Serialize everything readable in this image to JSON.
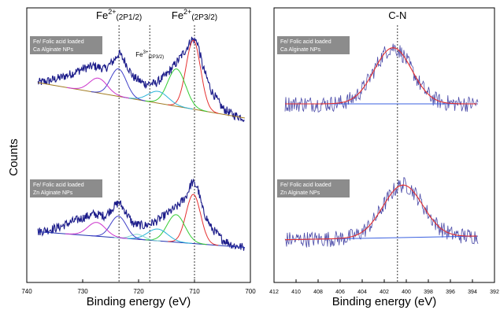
{
  "figure": {
    "y_axis_label": "Counts"
  },
  "chart_data": [
    {
      "type": "line",
      "panel": "left",
      "xlabel": "Binding energy (eV)",
      "ylabel": "Counts",
      "xlim": [
        740,
        700
      ],
      "x_reversed": true,
      "x_ticks": [
        740,
        730,
        720,
        710,
        700
      ],
      "peak_markers": [
        {
          "label_main": "Fe",
          "label_sup": "2+",
          "label_sub": "(2P1/2)",
          "x": 723.5
        },
        {
          "label_main": "Fe",
          "label_sup": "3+",
          "label_sub": "(2P3/2)",
          "x": 718
        },
        {
          "label_main": "Fe",
          "label_sup": "2+",
          "label_sub": "(2P3/2)",
          "x": 710
        }
      ],
      "spectra": [
        {
          "sample_label": [
            "Fe/ Folic acid loaded",
            "Ca Alginate NPs"
          ],
          "raw_color": "#1c1c8a",
          "profile": [
            [
              738,
              0.56
            ],
            [
              736,
              0.58
            ],
            [
              734,
              0.61
            ],
            [
              732,
              0.65
            ],
            [
              730,
              0.7
            ],
            [
              728,
              0.73
            ],
            [
              726,
              0.7
            ],
            [
              724.5,
              0.78
            ],
            [
              723.5,
              0.86
            ],
            [
              722.5,
              0.78
            ],
            [
              721,
              0.62
            ],
            [
              719,
              0.55
            ],
            [
              717,
              0.55
            ],
            [
              715,
              0.64
            ],
            [
              713,
              0.78
            ],
            [
              711.5,
              0.9
            ],
            [
              710.5,
              1.0
            ],
            [
              709.5,
              0.98
            ],
            [
              708.5,
              0.72
            ],
            [
              707,
              0.48
            ],
            [
              705,
              0.3
            ],
            [
              703,
              0.23
            ],
            [
              701,
              0.2
            ]
          ],
          "fit_components": [
            {
              "center": 710.2,
              "width": 1.3,
              "amplitude": 0.7,
              "color": "#e53030"
            },
            {
              "center": 713.2,
              "width": 1.6,
              "amplitude": 0.38,
              "color": "#33cc33"
            },
            {
              "center": 716.5,
              "width": 1.8,
              "amplitude": 0.12,
              "color": "#29b3d9"
            },
            {
              "center": 723.6,
              "width": 1.4,
              "amplitude": 0.28,
              "color": "#4040c8"
            },
            {
              "center": 727.2,
              "width": 1.6,
              "amplitude": 0.15,
              "color": "#cc33cc"
            }
          ],
          "baseline": {
            "x": [
              738,
              701
            ],
            "y": [
              0.56,
              0.2
            ],
            "color": "#a07a20"
          }
        },
        {
          "sample_label": [
            "Fe/ Folic acid loaded",
            "Zn Alginate NPs"
          ],
          "raw_color": "#1c1c8a",
          "profile": [
            [
              738,
              0.3
            ],
            [
              736,
              0.32
            ],
            [
              734,
              0.35
            ],
            [
              732,
              0.4
            ],
            [
              730,
              0.44
            ],
            [
              728,
              0.48
            ],
            [
              726,
              0.46
            ],
            [
              724.5,
              0.55
            ],
            [
              723.5,
              0.6
            ],
            [
              722.5,
              0.52
            ],
            [
              721,
              0.38
            ],
            [
              719,
              0.36
            ],
            [
              717,
              0.4
            ],
            [
              715,
              0.48
            ],
            [
              713,
              0.56
            ],
            [
              711.5,
              0.66
            ],
            [
              710.5,
              0.8
            ],
            [
              709.5,
              0.76
            ],
            [
              708.5,
              0.52
            ],
            [
              707,
              0.34
            ],
            [
              705,
              0.22
            ],
            [
              703,
              0.16
            ],
            [
              701,
              0.14
            ]
          ],
          "fit_components": [
            {
              "center": 710.2,
              "width": 1.3,
              "amplitude": 0.5,
              "color": "#e53030"
            },
            {
              "center": 713.3,
              "width": 1.6,
              "amplitude": 0.28,
              "color": "#33cc33"
            },
            {
              "center": 716.6,
              "width": 1.8,
              "amplitude": 0.12,
              "color": "#29b3d9"
            },
            {
              "center": 720.2,
              "width": 1.2,
              "amplitude": 0.05,
              "color": "#7fd6cf"
            },
            {
              "center": 723.6,
              "width": 1.4,
              "amplitude": 0.22,
              "color": "#4040c8"
            },
            {
              "center": 727.5,
              "width": 1.6,
              "amplitude": 0.14,
              "color": "#cc33cc"
            }
          ],
          "baseline": {
            "x": [
              738,
              701
            ],
            "y": [
              0.3,
              0.14
            ],
            "color": "#2030b0"
          }
        }
      ]
    },
    {
      "type": "line",
      "panel": "right",
      "xlabel": "Binding energy (eV)",
      "xlim": [
        412,
        392
      ],
      "x_reversed": true,
      "x_ticks": [
        412,
        410,
        408,
        406,
        404,
        402,
        400,
        398,
        396,
        394,
        392
      ],
      "peak_markers": [
        {
          "label_main": "C-N",
          "x": 400.8
        }
      ],
      "spectra": [
        {
          "sample_label": [
            "Fe/ Folic acid loaded",
            "Ca Alginate NPs"
          ],
          "raw_color": "#4a4aa8",
          "peak": {
            "center": 401.2,
            "width": 1.7,
            "amplitude": 0.62
          },
          "noise": 0.09,
          "baseline": {
            "x": [
              411,
              393.5
            ],
            "y": [
              0.4,
              0.4
            ],
            "color": "#3a60e0"
          },
          "fit_color": "#e53030"
        },
        {
          "sample_label": [
            "Fe/ Folic acid loaded",
            "Zn Alginate NPs"
          ],
          "raw_color": "#4a4aa8",
          "peak": {
            "center": 400.3,
            "width": 1.8,
            "amplitude": 0.58
          },
          "noise": 0.09,
          "baseline": {
            "x": [
              411,
              393.5
            ],
            "y": [
              0.22,
              0.26
            ],
            "color": "#3a60e0"
          },
          "fit_color": "#e53030"
        }
      ]
    }
  ]
}
